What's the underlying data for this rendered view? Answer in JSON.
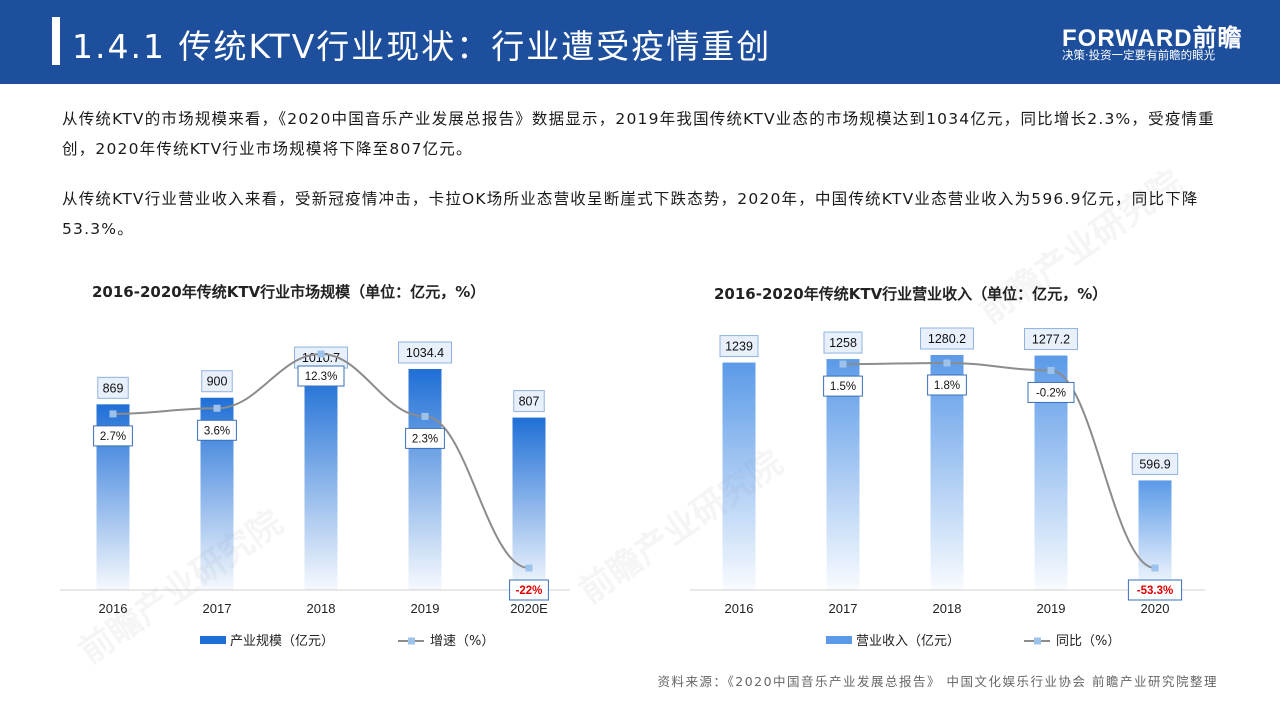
{
  "header": {
    "title": "1.4.1 传统KTV行业现状：行业遭受疫情重创",
    "brand": "FORWARD前瞻",
    "slogan": "决策·投资一定要有前瞻的眼光"
  },
  "paragraphs": [
    "从传统KTV的市场规模来看，《2020中国音乐产业发展总报告》数据显示，2019年我国传统KTV业态的市场规模达到1034亿元，同比增长2.3%，受疫情重创，2020年传统KTV行业市场规模将下降至807亿元。",
    "从传统KTV行业营业收入来看，受新冠疫情冲击，卡拉OK场所业态营收呈断崖式下跌态势，2020年，中国传统KTV业态营业收入为596.9亿元，同比下降53.3%。"
  ],
  "watermark": "前瞻产业研究院",
  "source": "资料来源：《2020中国音乐产业发展总报告》 中国文化娱乐行业协会  前瞻产业研究院整理",
  "colors": {
    "header": "#1d4f9c",
    "bar_left": "#1f6fd6",
    "bar_right": "#5b9ae8",
    "line": "#8c8c8c",
    "marker": "#9dc3ec",
    "negative_label": "#e00000"
  },
  "chart_data": [
    {
      "type": "bar",
      "title": "2016-2020年传统KTV行业市场规模（单位：亿元，%）",
      "categories": [
        "2016",
        "2017",
        "2018",
        "2019",
        "2020E"
      ],
      "series": [
        {
          "name": "产业规模（亿元）",
          "type": "bar",
          "values": [
            869,
            900,
            1010.7,
            1034.4,
            807
          ],
          "labels": [
            "869",
            "900",
            "1010.7",
            "1034.4",
            "807"
          ]
        },
        {
          "name": "增速（%）",
          "type": "line",
          "values": [
            2.7,
            3.6,
            12.3,
            2.3,
            -22
          ],
          "labels": [
            "2.7%",
            "3.6%",
            "12.3%",
            "2.3%",
            "-22%"
          ]
        }
      ],
      "legend": "bottom"
    },
    {
      "type": "bar",
      "title": "2016-2020年传统KTV行业营业收入（单位：亿元，%）",
      "categories": [
        "2016",
        "2017",
        "2018",
        "2019",
        "2020"
      ],
      "series": [
        {
          "name": "营业收入（亿元）",
          "type": "bar",
          "values": [
            1239,
            1258,
            1280.2,
            1277.2,
            596.9
          ],
          "labels": [
            "1239",
            "1258",
            "1280.2",
            "1277.2",
            "596.9"
          ]
        },
        {
          "name": "同比（%）",
          "type": "line",
          "values": [
            null,
            1.5,
            1.8,
            -0.2,
            -53.3
          ],
          "labels": [
            "",
            "1.5%",
            "1.8%",
            "-0.2%",
            "-53.3%"
          ]
        }
      ],
      "legend": "bottom"
    }
  ]
}
